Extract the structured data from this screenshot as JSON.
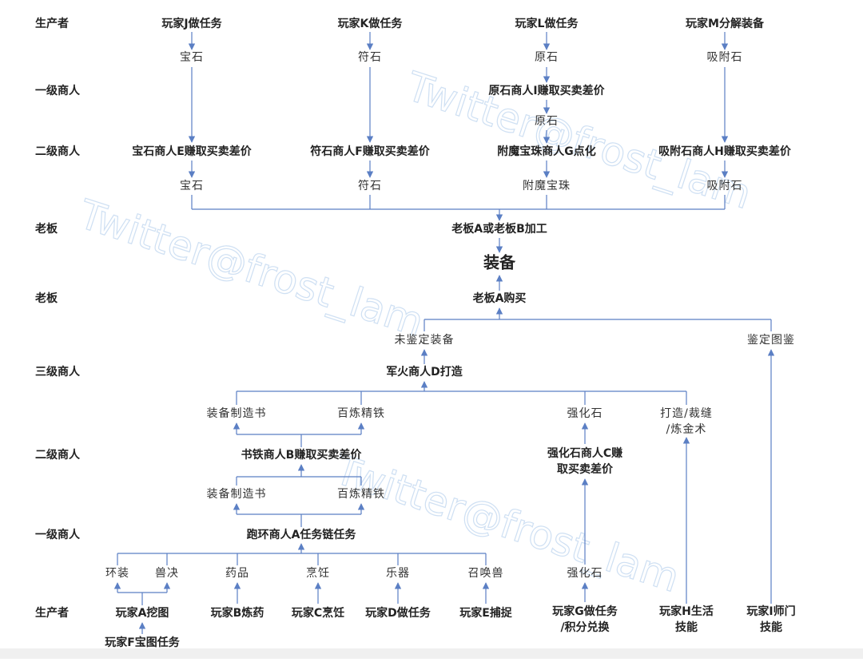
{
  "level_labels": [
    "生产者",
    "一级商人",
    "二级商人",
    "老板",
    "老板",
    "三级商人",
    "二级商人",
    "一级商人",
    "生产者"
  ],
  "nodes": [
    {
      "lines": [
        "玩家J做任务"
      ]
    },
    {
      "lines": [
        "玩家K做任务"
      ]
    },
    {
      "lines": [
        "玩家L做任务"
      ]
    },
    {
      "lines": [
        "玩家M分解装备"
      ]
    },
    {
      "lines": [
        "宝石"
      ]
    },
    {
      "lines": [
        "符石"
      ]
    },
    {
      "lines": [
        "原石"
      ]
    },
    {
      "lines": [
        "吸附石"
      ]
    },
    {
      "lines": [
        "原石商人I赚取买卖差价"
      ]
    },
    {
      "lines": [
        "原石"
      ]
    },
    {
      "lines": [
        "宝石商人E赚取买卖差价"
      ]
    },
    {
      "lines": [
        "符石商人F赚取买卖差价"
      ]
    },
    {
      "lines": [
        "附魔宝珠商人G点化"
      ]
    },
    {
      "lines": [
        "吸附石商人H赚取买卖差价"
      ]
    },
    {
      "lines": [
        "宝石"
      ]
    },
    {
      "lines": [
        "符石"
      ]
    },
    {
      "lines": [
        "附魔宝珠"
      ]
    },
    {
      "lines": [
        "吸附石"
      ]
    },
    {
      "lines": [
        "老板A或老板B加工"
      ]
    },
    {
      "lines": [
        "装备"
      ]
    },
    {
      "lines": [
        "老板A购买"
      ]
    },
    {
      "lines": [
        "未鉴定装备"
      ]
    },
    {
      "lines": [
        "鉴定图鉴"
      ]
    },
    {
      "lines": [
        "军火商人D打造"
      ]
    },
    {
      "lines": [
        "装备制造书"
      ]
    },
    {
      "lines": [
        "百炼精铁"
      ]
    },
    {
      "lines": [
        "强化石"
      ]
    },
    {
      "lines": [
        "打造/裁缝",
        "/炼金术"
      ]
    },
    {
      "lines": [
        "书铁商人B赚取买卖差价"
      ]
    },
    {
      "lines": [
        "强化石商人C赚",
        "取买卖差价"
      ]
    },
    {
      "lines": [
        "装备制造书"
      ]
    },
    {
      "lines": [
        "百炼精铁"
      ]
    },
    {
      "lines": [
        "跑环商人A任务链任务"
      ]
    },
    {
      "lines": [
        "环装"
      ]
    },
    {
      "lines": [
        "兽决"
      ]
    },
    {
      "lines": [
        "药品"
      ]
    },
    {
      "lines": [
        "烹饪"
      ]
    },
    {
      "lines": [
        "乐器"
      ]
    },
    {
      "lines": [
        "召唤兽"
      ]
    },
    {
      "lines": [
        "强化石"
      ]
    },
    {
      "lines": [
        "玩家A挖图"
      ]
    },
    {
      "lines": [
        "玩家B炼药"
      ]
    },
    {
      "lines": [
        "玩家C烹饪"
      ]
    },
    {
      "lines": [
        "玩家D做任务"
      ]
    },
    {
      "lines": [
        "玩家E捕捉"
      ]
    },
    {
      "lines": [
        "玩家G做任务",
        "/积分兑换"
      ]
    },
    {
      "lines": [
        "玩家H生活",
        "技能"
      ]
    },
    {
      "lines": [
        "玩家I师门",
        "技能"
      ]
    },
    {
      "lines": [
        "玩家F宝图任务"
      ]
    }
  ],
  "watermarks": [
    "Twitter@frost_lam",
    "Twitter@frost_lam",
    "Twitter@frost_lam"
  ]
}
